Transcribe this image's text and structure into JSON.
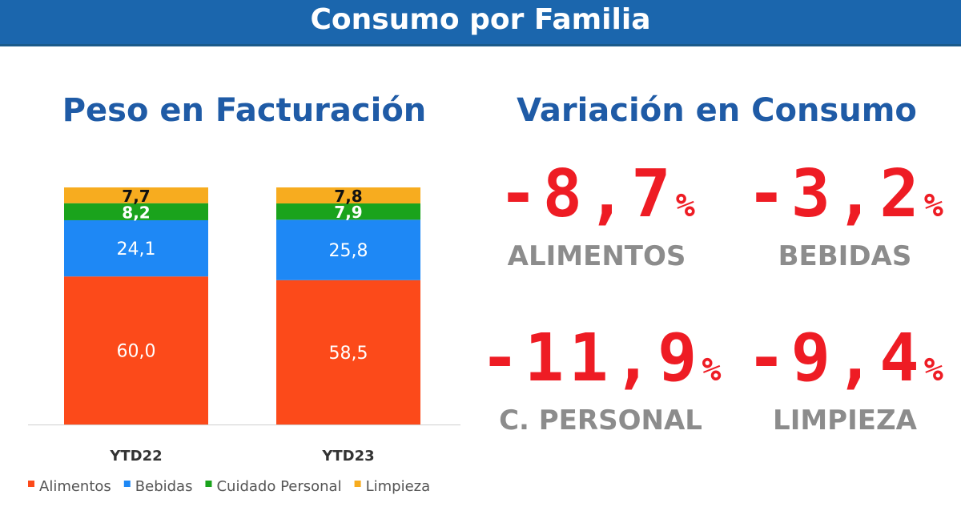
{
  "header": {
    "title": "Consumo por Familia"
  },
  "left": {
    "title": "Peso en Facturación"
  },
  "right": {
    "title": "Variación en Consumo",
    "items": [
      {
        "value": "-8,7",
        "unit": "%",
        "label": "ALIMENTOS"
      },
      {
        "value": "-3,2",
        "unit": "%",
        "label": "BEBIDAS"
      },
      {
        "value": "-11,9",
        "unit": "%",
        "label": "C. PERSONAL"
      },
      {
        "value": "-9,4",
        "unit": "%",
        "label": "LIMPIEZA"
      }
    ]
  },
  "chart_data": {
    "type": "bar",
    "stacked": true,
    "title": "Peso en Facturación",
    "categories": [
      "YTD22",
      "YTD23"
    ],
    "series": [
      {
        "name": "Alimentos",
        "color": "#fc4a1a",
        "label_color": "#ffffff",
        "values": [
          60.0,
          58.5
        ],
        "labels": [
          "60,0",
          "58,5"
        ]
      },
      {
        "name": "Bebidas",
        "color": "#1e88f5",
        "label_color": "#ffffff",
        "values": [
          24.1,
          25.8
        ],
        "labels": [
          "24,1",
          "25,8"
        ]
      },
      {
        "name": "Cuidado Personal",
        "color": "#1aa31c",
        "label_color": "#ffffff",
        "values": [
          8.2,
          7.9
        ],
        "labels": [
          "8,2",
          "7,9"
        ]
      },
      {
        "name": "Limpieza",
        "color": "#f7ac1f",
        "label_color": "#111111",
        "values": [
          7.7,
          7.8
        ],
        "labels": [
          "7,7",
          "7,8"
        ]
      }
    ],
    "legend": "bottom",
    "grid": false
  }
}
